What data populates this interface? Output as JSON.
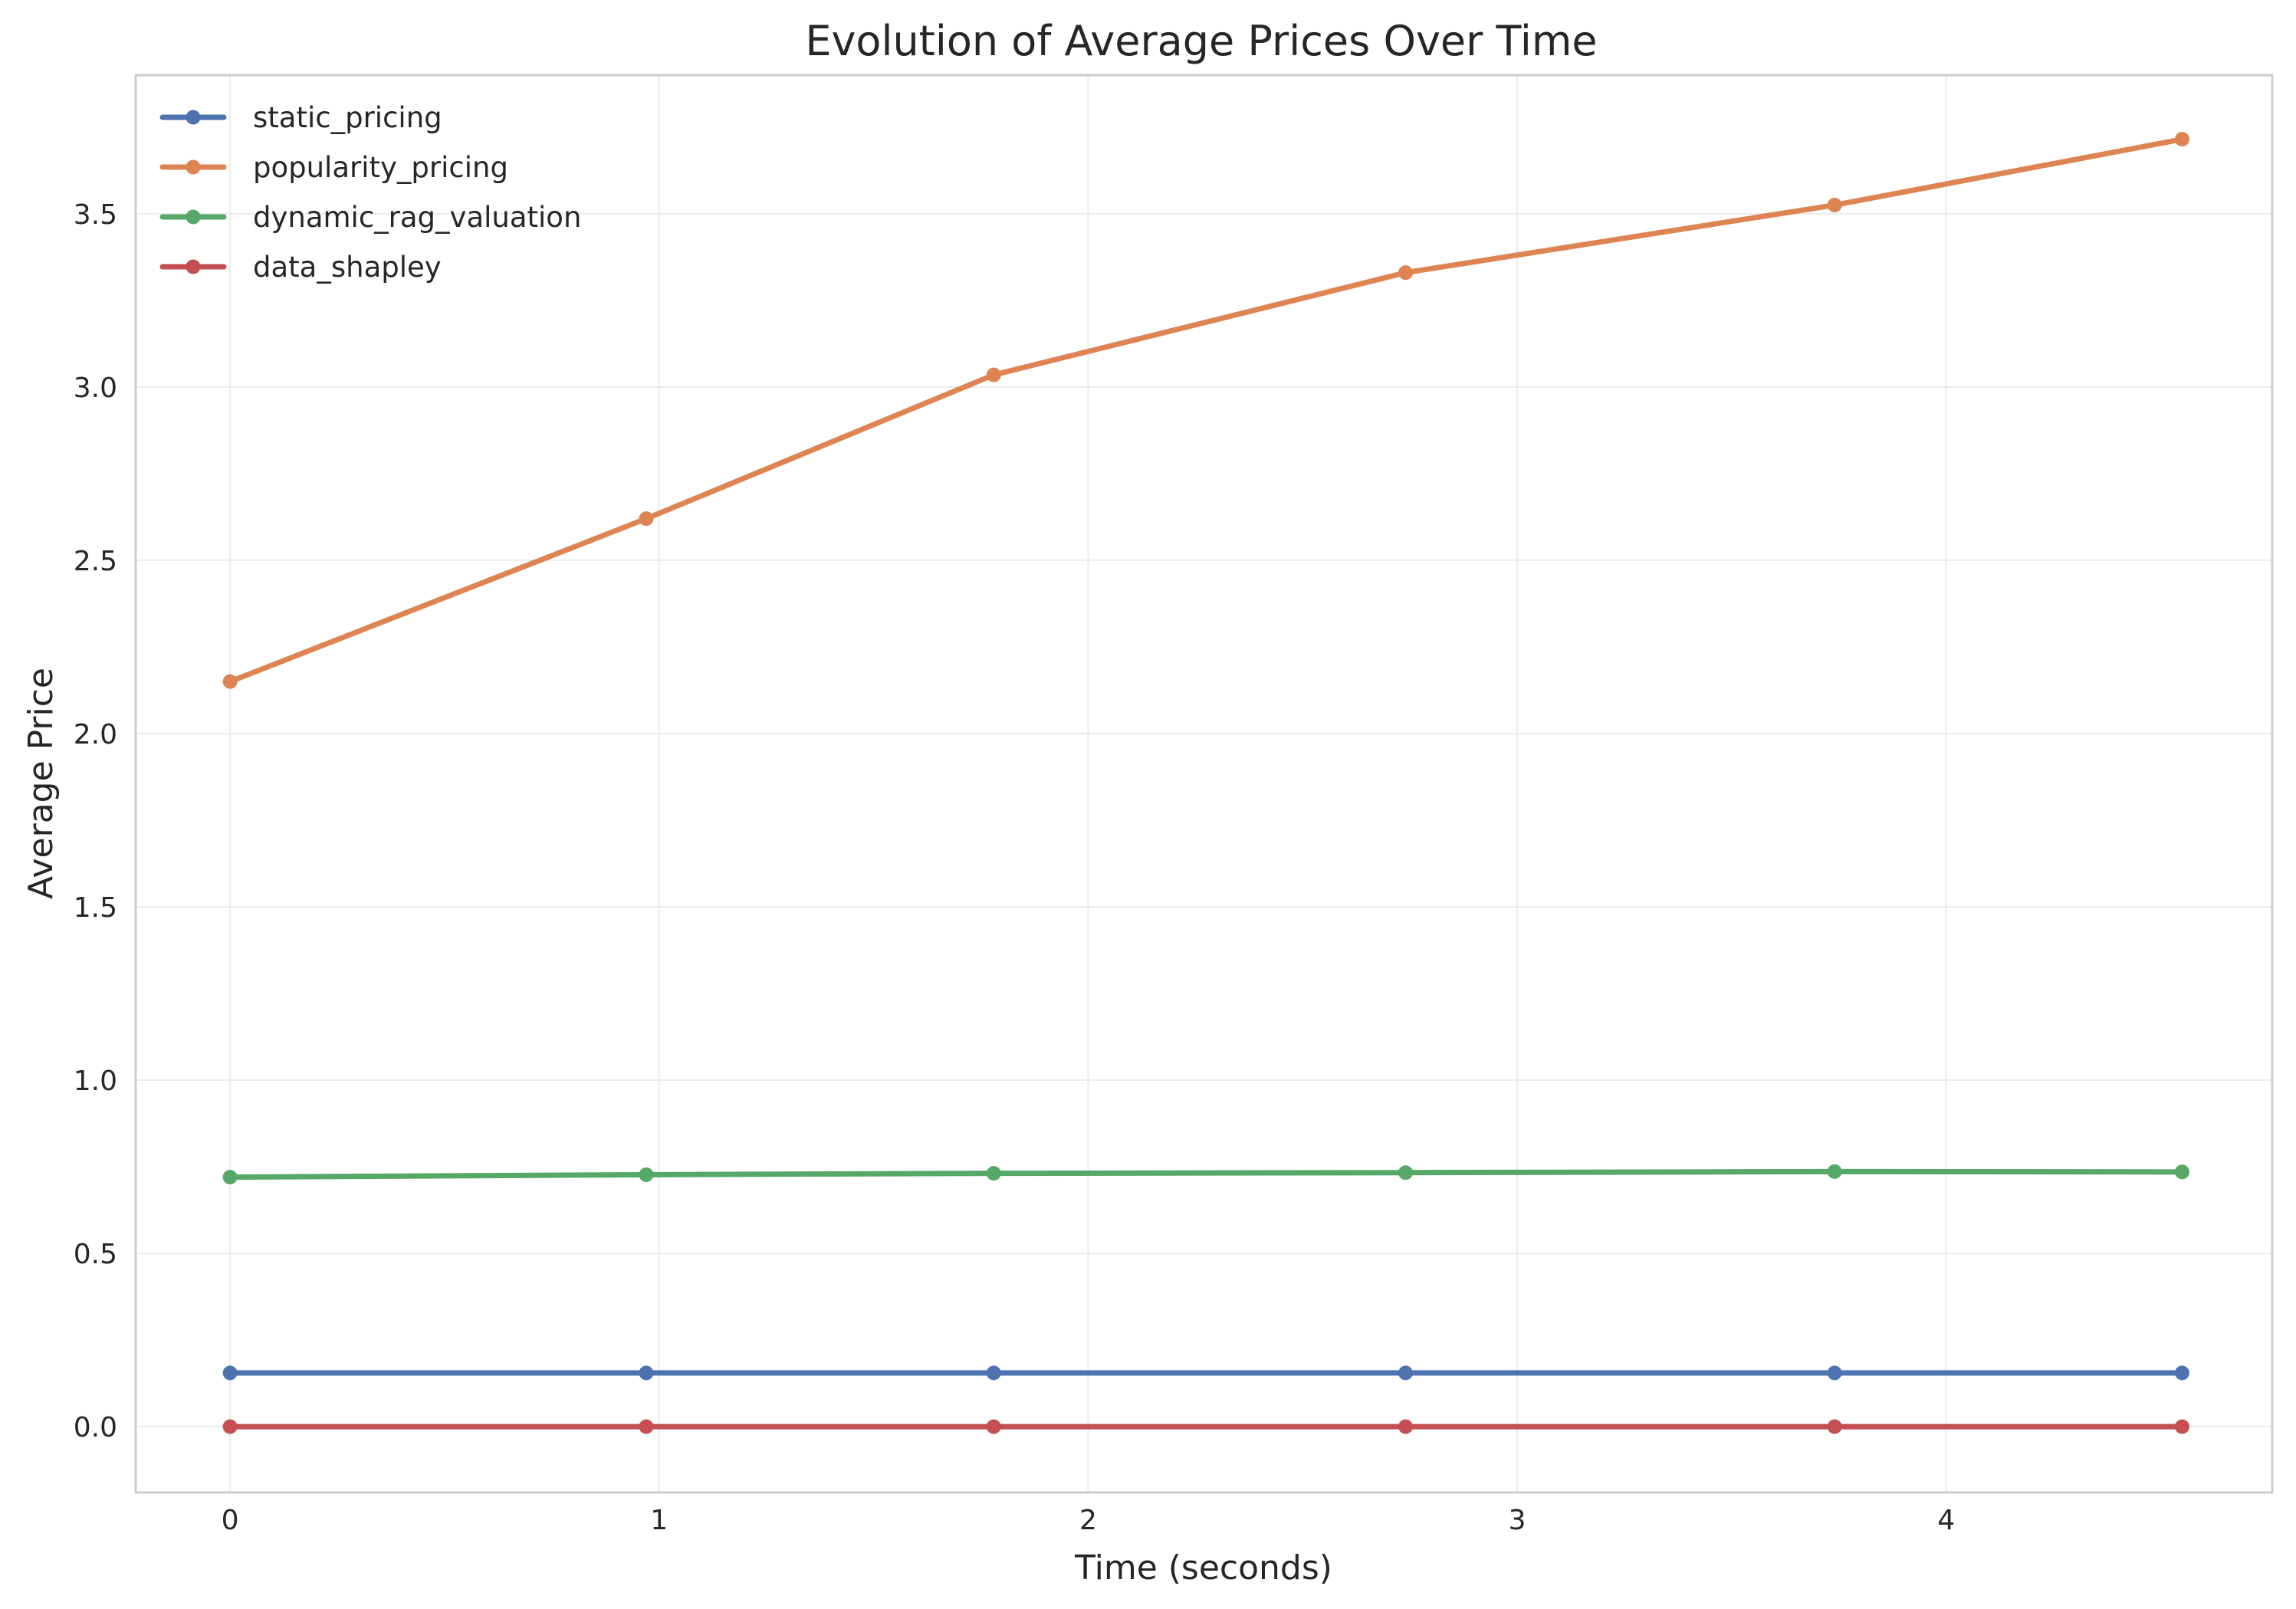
{
  "chart_data": {
    "type": "line",
    "title": "Evolution of Average Prices Over Time",
    "xlabel": "Time (seconds)",
    "ylabel": "Average Price",
    "xlim": [
      -0.22,
      4.76
    ],
    "ylim": [
      -0.19,
      3.9
    ],
    "xticks": [
      0,
      1,
      2,
      3,
      4
    ],
    "yticks": [
      0.0,
      0.5,
      1.0,
      1.5,
      2.0,
      2.5,
      3.0,
      3.5
    ],
    "xtick_labels": [
      "0",
      "1",
      "2",
      "3",
      "4"
    ],
    "ytick_labels": [
      "0.0",
      "0.5",
      "1.0",
      "1.5",
      "2.0",
      "2.5",
      "3.0",
      "3.5"
    ],
    "grid": true,
    "legend_position": "top-left",
    "series": [
      {
        "name": "static_pricing",
        "color": "#4c72b0",
        "x": [
          0.0,
          0.97,
          1.78,
          2.74,
          3.74,
          4.55
        ],
        "y": [
          0.155,
          0.155,
          0.155,
          0.155,
          0.155,
          0.155
        ]
      },
      {
        "name": "popularity_pricing",
        "color": "#dd8452",
        "x": [
          0.0,
          0.97,
          1.78,
          2.74,
          3.74,
          4.55
        ],
        "y": [
          2.15,
          2.62,
          3.035,
          3.33,
          3.525,
          3.715
        ]
      },
      {
        "name": "dynamic_rag_valuation",
        "color": "#55a868",
        "x": [
          0.0,
          0.97,
          1.78,
          2.74,
          3.74,
          4.55
        ],
        "y": [
          0.72,
          0.727,
          0.731,
          0.733,
          0.736,
          0.735
        ]
      },
      {
        "name": "data_shapley",
        "color": "#c44e52",
        "x": [
          0.0,
          0.97,
          1.78,
          2.74,
          3.74,
          4.55
        ],
        "y": [
          0.0,
          0.0,
          0.0,
          0.0,
          0.0,
          0.0
        ]
      }
    ]
  }
}
